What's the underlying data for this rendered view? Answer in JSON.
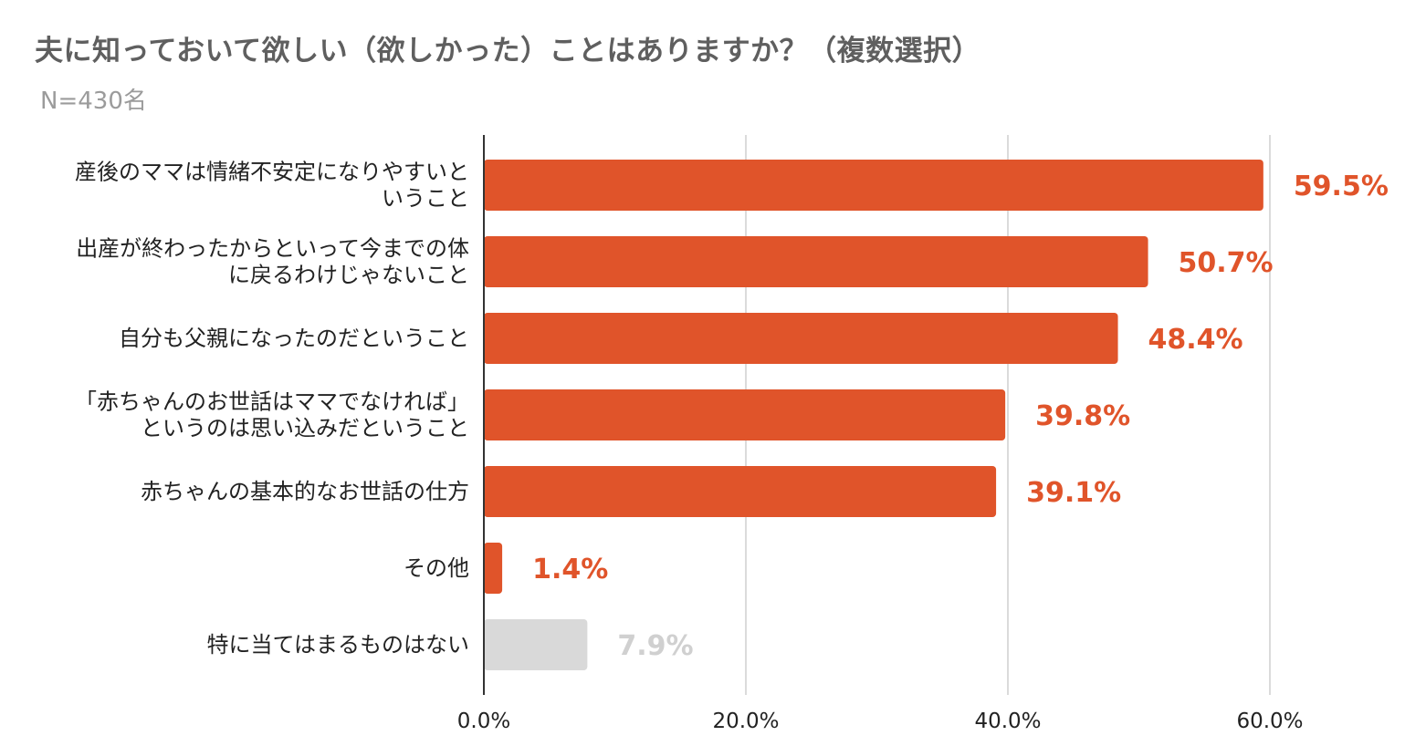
{
  "chart_data": {
    "type": "bar",
    "orientation": "horizontal",
    "title": "夫に知っておいて欲しい（欲しかった）ことはありますか？（複数選択）",
    "subtitle": "N=430名",
    "categories": [
      [
        "産後のママは情緒不安定になりやすいと",
        "いうこと"
      ],
      [
        "出産が終わったからといって今までの体",
        "に戻るわけじゃないこと"
      ],
      [
        "自分も父親になったのだということ"
      ],
      [
        "「赤ちゃんのお世話はママでなければ」",
        "というのは思い込みだということ"
      ],
      [
        "赤ちゃんの基本的なお世話の仕方"
      ],
      [
        "その他"
      ],
      [
        "特に当てはまるものはない"
      ]
    ],
    "values": [
      59.5,
      50.7,
      48.4,
      39.8,
      39.1,
      1.4,
      7.9
    ],
    "value_labels": [
      "59.5%",
      "50.7%",
      "48.4%",
      "39.8%",
      "39.1%",
      "1.4%",
      "7.9%"
    ],
    "bar_colors": [
      "#e0542a",
      "#e0542a",
      "#e0542a",
      "#e0542a",
      "#e0542a",
      "#e0542a",
      "#d9d9d9"
    ],
    "label_colors": [
      "#e0542a",
      "#e0542a",
      "#e0542a",
      "#e0542a",
      "#e0542a",
      "#e0542a",
      "#d0d0d0"
    ],
    "x_ticks": [
      0,
      20,
      40,
      60
    ],
    "x_tick_labels": [
      "0.0%",
      "20.0%",
      "40.0%",
      "60.0%"
    ],
    "xlim": [
      0,
      70
    ],
    "grid": true
  }
}
